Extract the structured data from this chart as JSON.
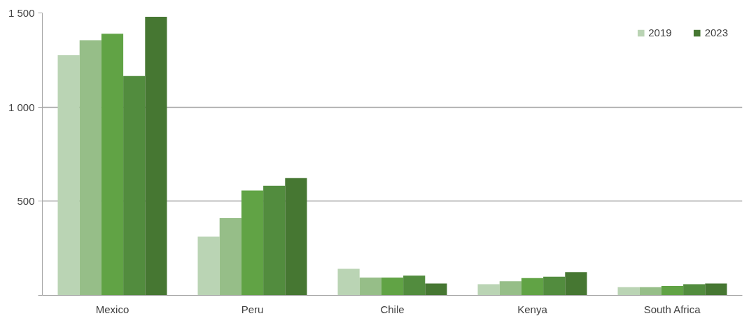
{
  "chart_data": {
    "type": "bar",
    "categories": [
      "Mexico",
      "Peru",
      "Chile",
      "Kenya",
      "South Africa"
    ],
    "series": [
      {
        "name": "2019",
        "color": "#bad4b4",
        "values": [
          1275,
          312,
          141,
          59,
          44
        ]
      },
      {
        "color": "#96be88",
        "values": [
          1355,
          410,
          95,
          75,
          44
        ]
      },
      {
        "color": "#61a345",
        "values": [
          1390,
          557,
          95,
          92,
          50
        ]
      },
      {
        "color": "#528c3e",
        "values": [
          1165,
          582,
          105,
          99,
          59
        ]
      },
      {
        "name": "2023",
        "color": "#467732",
        "values": [
          1480,
          623,
          63,
          123,
          63
        ]
      }
    ],
    "ylim": [
      0,
      1500
    ],
    "yticks": [
      {
        "value": 0,
        "label": null
      },
      {
        "value": 500,
        "label": "500"
      },
      {
        "value": 1000,
        "label": "1 000"
      },
      {
        "value": 1500,
        "label": "1 500"
      }
    ],
    "grid": "y",
    "legend": "top right"
  }
}
